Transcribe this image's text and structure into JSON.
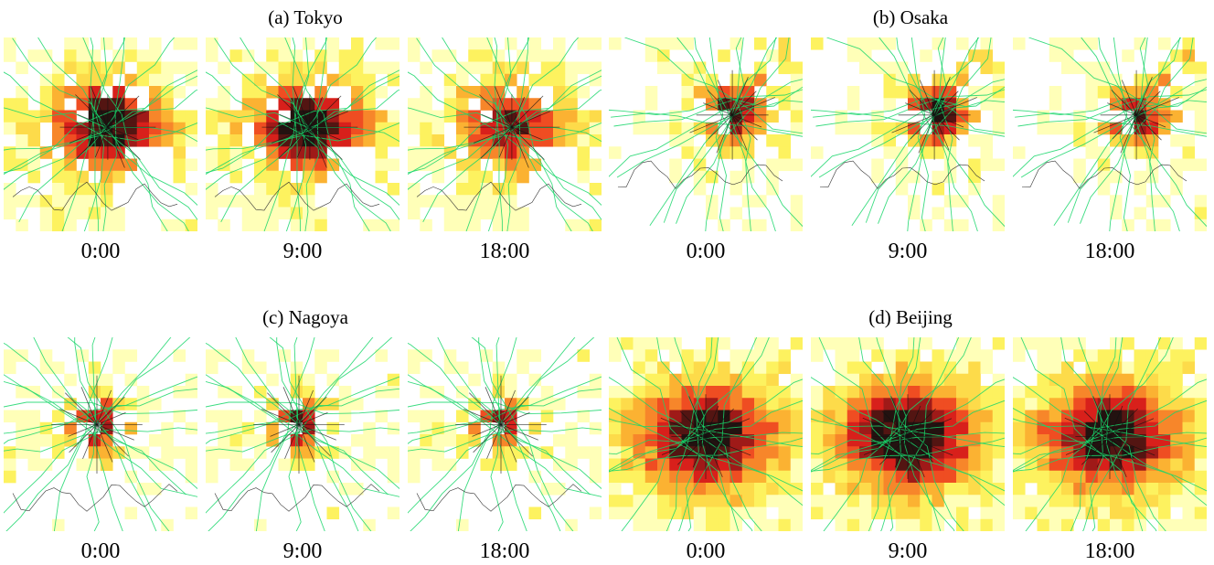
{
  "chart_data": {
    "type": "heatmap",
    "colorscale": [
      "#ffffb8",
      "#fdf25f",
      "#fddb4a",
      "#fbb232",
      "#f7862a",
      "#ef4d22",
      "#d8201b",
      "#9f1a18",
      "#531512",
      "#231210"
    ],
    "rail_color": "#17d66a",
    "coast_color": "#333333",
    "groups": [
      {
        "title": "(a) Tokyo",
        "city": "tokyo",
        "panels": [
          {
            "time": "0:00",
            "intensity": 1.0
          },
          {
            "time": "9:00",
            "intensity": 1.0
          },
          {
            "time": "18:00",
            "intensity": 0.78
          }
        ]
      },
      {
        "title": "(b) Osaka",
        "city": "osaka",
        "panels": [
          {
            "time": "0:00",
            "intensity": 0.9
          },
          {
            "time": "9:00",
            "intensity": 1.0
          },
          {
            "time": "18:00",
            "intensity": 0.82
          }
        ]
      },
      {
        "title": "(c) Nagoya",
        "city": "nagoya",
        "panels": [
          {
            "time": "0:00",
            "intensity": 0.85
          },
          {
            "time": "9:00",
            "intensity": 0.85
          },
          {
            "time": "18:00",
            "intensity": 0.78
          }
        ]
      },
      {
        "title": "(d) Beijing",
        "city": "beijing",
        "panels": [
          {
            "time": "0:00",
            "intensity": 1.0
          },
          {
            "time": "9:00",
            "intensity": 1.05
          },
          {
            "time": "18:00",
            "intensity": 1.0
          }
        ]
      }
    ]
  }
}
